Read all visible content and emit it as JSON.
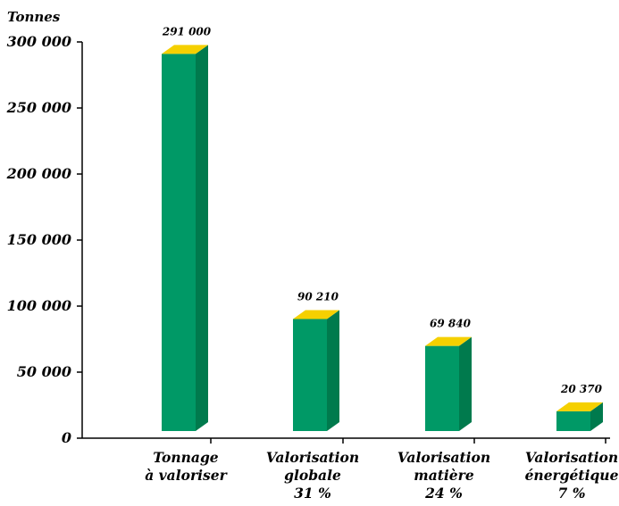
{
  "chart_data": {
    "type": "bar",
    "title": "",
    "ylabel": "Tonnes",
    "xlabel": "",
    "ylim": [
      0,
      300000
    ],
    "yticks": [
      0,
      50000,
      100000,
      150000,
      200000,
      250000,
      300000
    ],
    "ytick_labels": [
      "0",
      "50 000",
      "100 000",
      "150 000",
      "200 000",
      "250 000",
      "300 000"
    ],
    "categories": [
      [
        "Tonnage",
        "à valoriser"
      ],
      [
        "Valorisation",
        "globale",
        "31 %"
      ],
      [
        "Valorisation",
        "matière",
        "24 %"
      ],
      [
        "Valorisation",
        "énergétique",
        "7 %"
      ]
    ],
    "values": [
      291000,
      90210,
      69840,
      20370
    ],
    "value_labels": [
      "291 000",
      "90 210",
      "69 840",
      "20 370"
    ],
    "grid": false,
    "style": "3d-bars",
    "colors": {
      "front": "#009966",
      "side": "#007a4d",
      "top": "#f5d000",
      "axis": "#000000"
    }
  }
}
